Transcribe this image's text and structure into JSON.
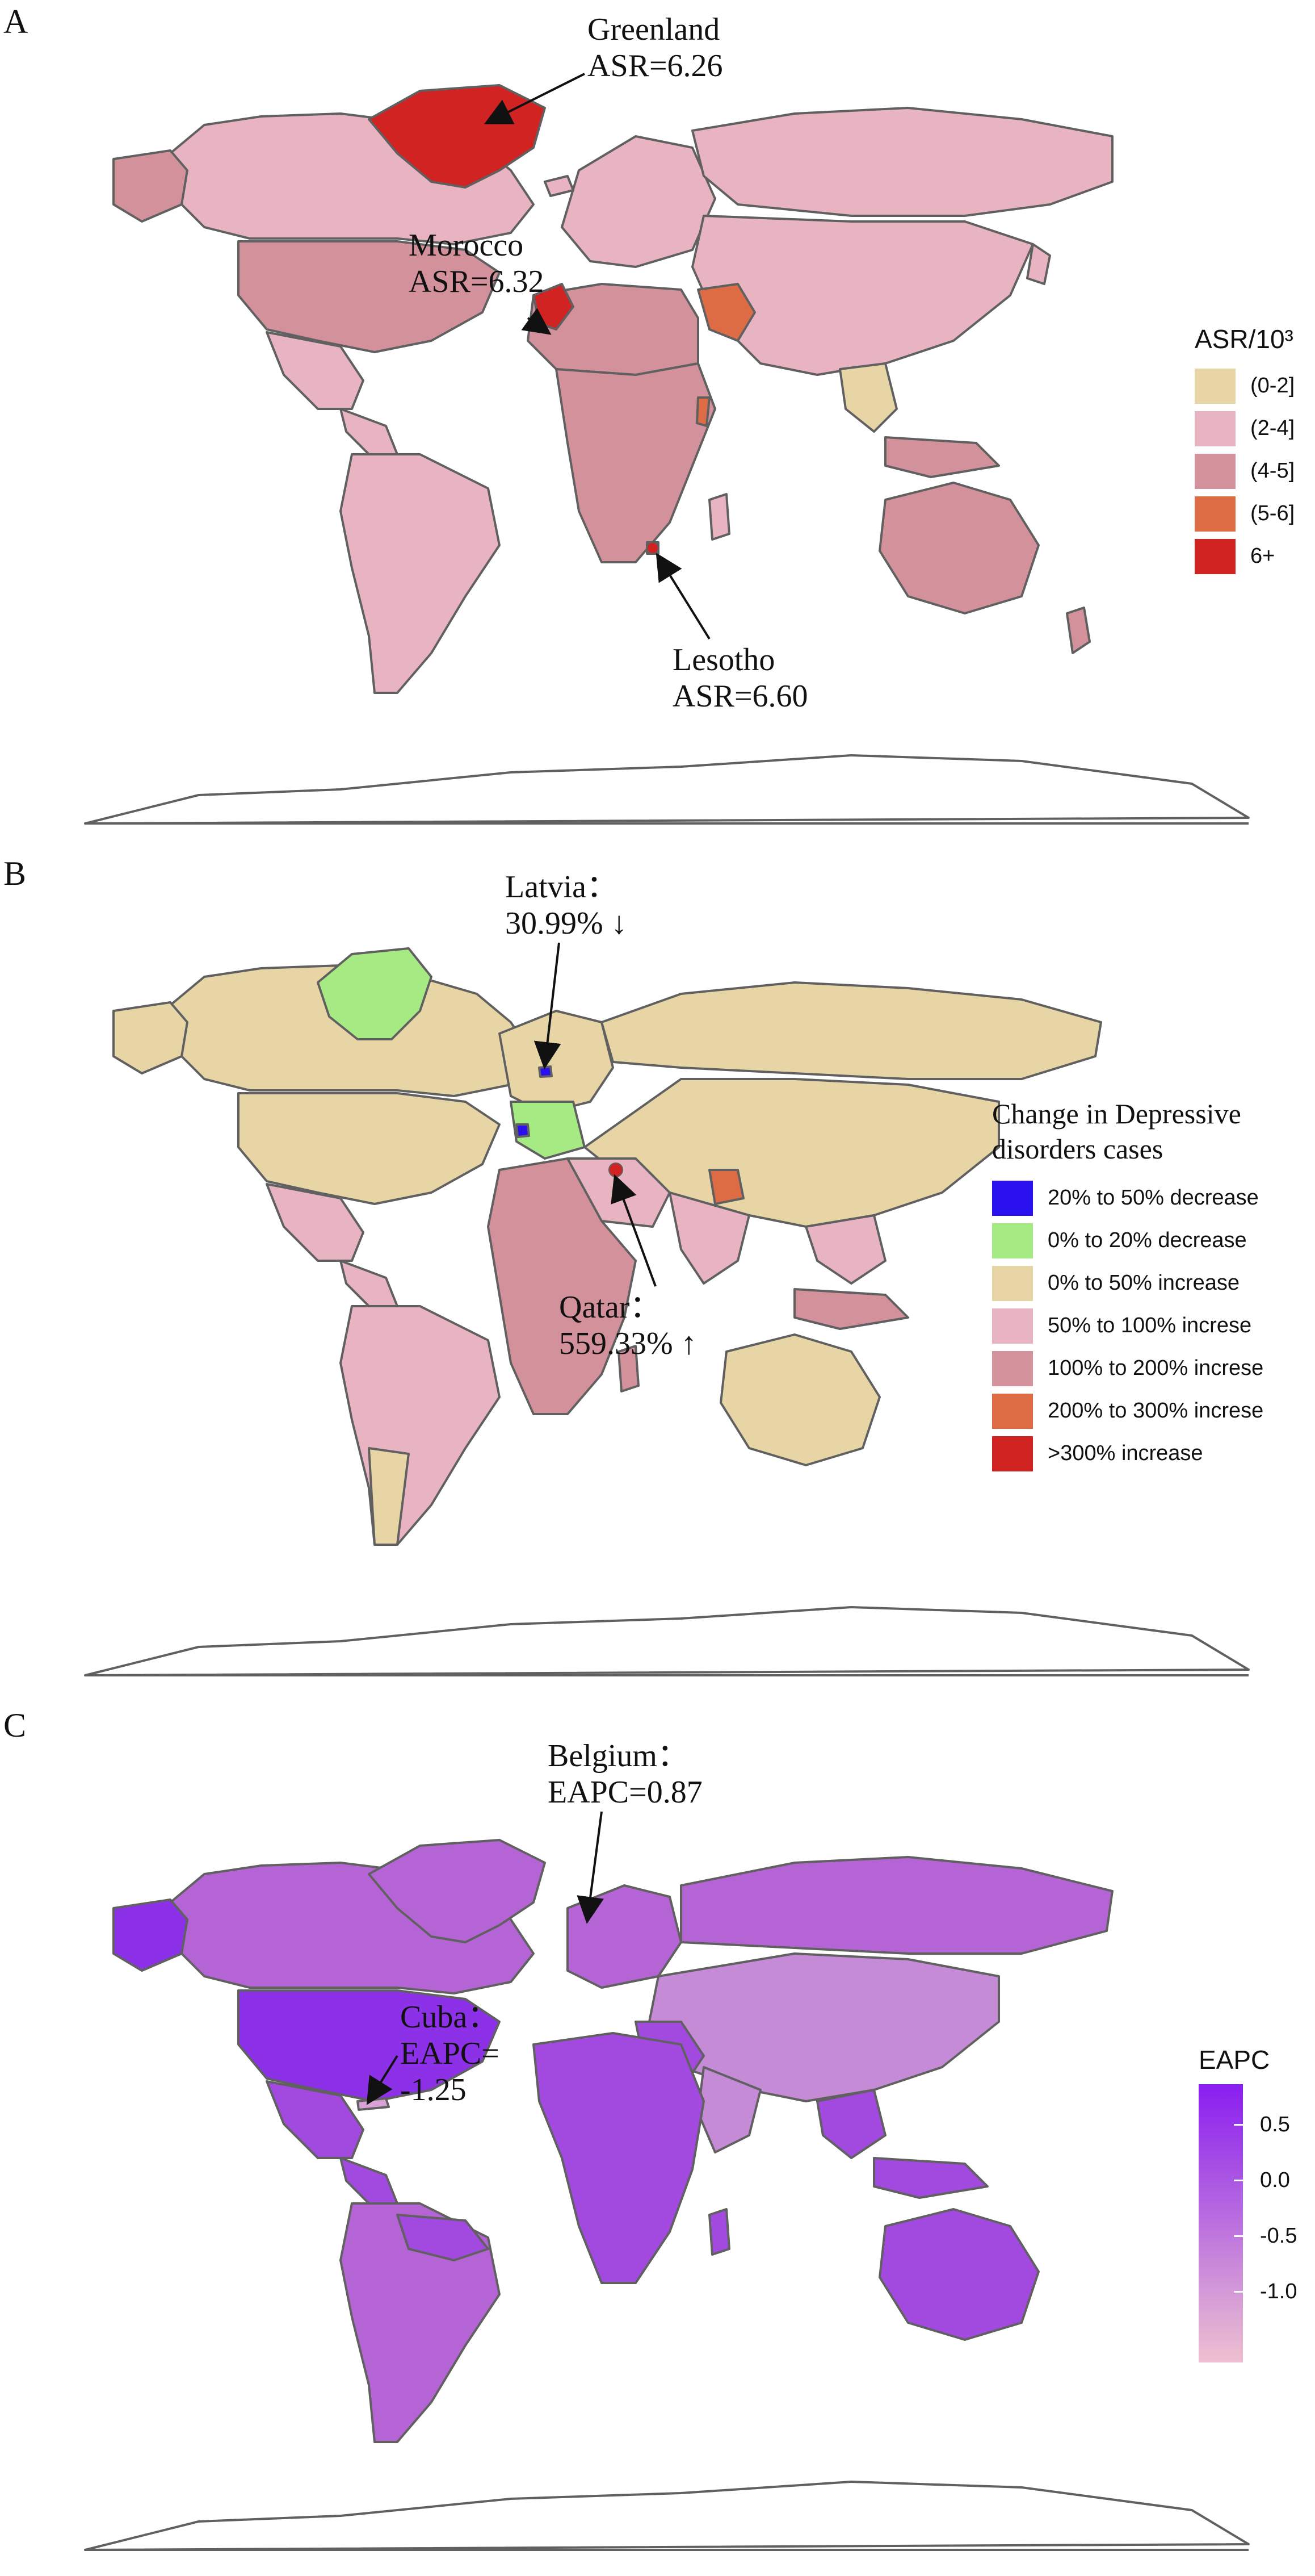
{
  "panels": {
    "a": {
      "label": "A",
      "annotations": {
        "greenland": "Greenland\nASR=6.26",
        "morocco": "Morocco\nASR=6.32",
        "lesotho": "Lesotho\nASR=6.60"
      },
      "legend": {
        "title": "ASR/10³",
        "items": [
          {
            "label": "(0-2]",
            "color": "#e7d5a6"
          },
          {
            "label": "(2-4]",
            "color": "#e8b4c1"
          },
          {
            "label": "(4-5]",
            "color": "#d3919b"
          },
          {
            "label": "(5-6]",
            "color": "#dd6c44"
          },
          {
            "label": "6+",
            "color": "#d12322"
          }
        ]
      }
    },
    "b": {
      "label": "B",
      "annotations": {
        "latvia": "Latvia：\n30.99% ↓",
        "qatar": "Qatar：\n559.33% ↑"
      },
      "legend": {
        "title": "Change in Depressive disorders cases",
        "items": [
          {
            "label": "20% to 50% decrease",
            "color": "#2a0fef"
          },
          {
            "label": "0% to 20% decrease",
            "color": "#a6ea84"
          },
          {
            "label": "0% to 50% increase",
            "color": "#e7d5a6"
          },
          {
            "label": "50% to 100% increse",
            "color": "#e8b4c1"
          },
          {
            "label": "100% to 200% increse",
            "color": "#d3919b"
          },
          {
            "label": "200% to 300% increse",
            "color": "#dd6c44"
          },
          {
            "label": ">300% increase",
            "color": "#d12322"
          }
        ]
      }
    },
    "c": {
      "label": "C",
      "annotations": {
        "belgium": "Belgium：\nEAPC=0.87",
        "cuba": "Cuba：\nEAPC=\n-1.25"
      },
      "legend": {
        "title": "EAPC",
        "ticks": [
          "0.5",
          "0.0",
          "-0.5",
          "-1.0"
        ],
        "colors": {
          "high": "#8a1ef0",
          "low": "#efc0d0"
        }
      }
    }
  },
  "colors": {
    "border": "#606060",
    "eapc_base": "#b564d6",
    "eapc_dark": "#8d31e8"
  }
}
